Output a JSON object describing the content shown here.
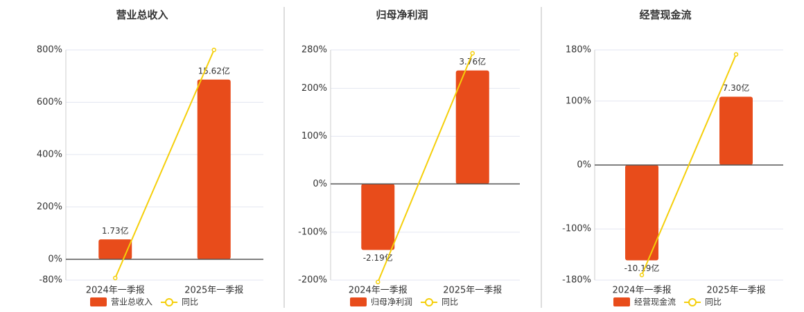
{
  "chart_data": [
    {
      "type": "bar",
      "title": "营业总收入",
      "categories": [
        "2024年一季报",
        "2025年一季报"
      ],
      "series": [
        {
          "name": "营业总收入",
          "type": "bar",
          "axis": "y2",
          "color": "#e84c1b",
          "values": [
            1.73,
            15.62
          ],
          "value_labels": [
            "1.73亿",
            "15.62亿"
          ]
        },
        {
          "name": "同比",
          "type": "line",
          "color": "#f5cf0a",
          "values": [
            -72,
            800
          ]
        }
      ],
      "ylim": [
        -80,
        800
      ],
      "yticks": [
        {
          "value": -80,
          "label": "-80%"
        },
        {
          "value": 0,
          "label": "0%"
        },
        {
          "value": 200,
          "label": "200%"
        },
        {
          "value": 400,
          "label": "400%"
        },
        {
          "value": 600,
          "label": "600%"
        },
        {
          "value": 800,
          "label": "800%"
        }
      ],
      "y2lim": [
        -1.81,
        18.2
      ],
      "grid": true
    },
    {
      "type": "bar",
      "title": "归母净利润",
      "categories": [
        "2024年一季报",
        "2025年一季报"
      ],
      "series": [
        {
          "name": "归母净利润",
          "type": "bar",
          "axis": "y2",
          "color": "#e84c1b",
          "values": [
            -2.19,
            3.76
          ],
          "value_labels": [
            "-2.19亿",
            "3.76亿"
          ]
        },
        {
          "name": "同比",
          "type": "line",
          "color": "#f5cf0a",
          "values": [
            -204,
            273
          ]
        }
      ],
      "ylim": [
        -200,
        280
      ],
      "yticks": [
        {
          "value": -200,
          "label": "-200%"
        },
        {
          "value": -100,
          "label": "-100%"
        },
        {
          "value": 0,
          "label": "0%"
        },
        {
          "value": 100,
          "label": "100%"
        },
        {
          "value": 200,
          "label": "200%"
        },
        {
          "value": 280,
          "label": "280%"
        }
      ],
      "y2lim": [
        -3.19,
        4.44
      ],
      "grid": true
    },
    {
      "type": "bar",
      "title": "经营现金流",
      "categories": [
        "2024年一季报",
        "2025年一季报"
      ],
      "series": [
        {
          "name": "经营现金流",
          "type": "bar",
          "axis": "y2",
          "color": "#e84c1b",
          "values": [
            -10.19,
            7.3
          ],
          "value_labels": [
            "-10.19亿",
            "7.30亿"
          ]
        },
        {
          "name": "同比",
          "type": "line",
          "color": "#f5cf0a",
          "values": [
            -172,
            173
          ]
        }
      ],
      "ylim": [
        -180,
        180
      ],
      "yticks": [
        {
          "value": -180,
          "label": "-180%"
        },
        {
          "value": -100,
          "label": "-100%"
        },
        {
          "value": 0,
          "label": "0%"
        },
        {
          "value": 100,
          "label": "100%"
        },
        {
          "value": 180,
          "label": "180%"
        }
      ],
      "y2lim": [
        -12.3,
        12.3
      ],
      "grid": true
    }
  ]
}
